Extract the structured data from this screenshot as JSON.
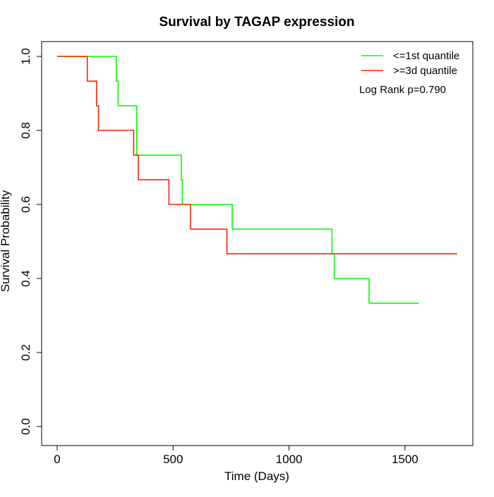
{
  "chart_data": {
    "type": "line",
    "title": "Survival by TAGAP expression",
    "xlabel": "Time (Days)",
    "ylabel": "Survival Probability",
    "xlim": [
      0,
      1800
    ],
    "ylim": [
      0,
      1
    ],
    "x_ticks": [
      0,
      500,
      1000,
      1500
    ],
    "x_tick_labels": [
      "0",
      "500",
      "1000",
      "1500"
    ],
    "y_ticks": [
      0,
      0.2,
      0.4,
      0.6,
      0.8,
      1.0
    ],
    "y_tick_labels": [
      "0.0",
      "0.2",
      "0.4",
      "0.6",
      "0.8",
      "1.0"
    ],
    "grid": false,
    "legend_position": "top-right",
    "annotation": "Log Rank p=0.790",
    "series": [
      {
        "name": "<=1st quantile",
        "color": "#00ff00",
        "step_points": [
          [
            0,
            1.0
          ],
          [
            255,
            1.0
          ],
          [
            255,
            0.9333
          ],
          [
            263,
            0.9333
          ],
          [
            263,
            0.8667
          ],
          [
            343,
            0.8667
          ],
          [
            343,
            0.7333
          ],
          [
            535,
            0.7333
          ],
          [
            535,
            0.6667
          ],
          [
            540,
            0.6667
          ],
          [
            540,
            0.6
          ],
          [
            755,
            0.6
          ],
          [
            755,
            0.5333
          ],
          [
            1185,
            0.5333
          ],
          [
            1185,
            0.4667
          ],
          [
            1195,
            0.4667
          ],
          [
            1195,
            0.4
          ],
          [
            1345,
            0.4
          ],
          [
            1345,
            0.3333
          ],
          [
            1560,
            0.3333
          ]
        ]
      },
      {
        "name": ">=3d quantile",
        "color": "#ff2200",
        "step_points": [
          [
            0,
            1.0
          ],
          [
            130,
            1.0
          ],
          [
            130,
            0.9333
          ],
          [
            170,
            0.9333
          ],
          [
            170,
            0.8667
          ],
          [
            178,
            0.8667
          ],
          [
            178,
            0.8
          ],
          [
            330,
            0.8
          ],
          [
            330,
            0.7333
          ],
          [
            350,
            0.7333
          ],
          [
            350,
            0.6667
          ],
          [
            482,
            0.6667
          ],
          [
            482,
            0.6
          ],
          [
            575,
            0.6
          ],
          [
            575,
            0.5333
          ],
          [
            732,
            0.5333
          ],
          [
            732,
            0.4667
          ],
          [
            1725,
            0.4667
          ]
        ]
      }
    ]
  }
}
